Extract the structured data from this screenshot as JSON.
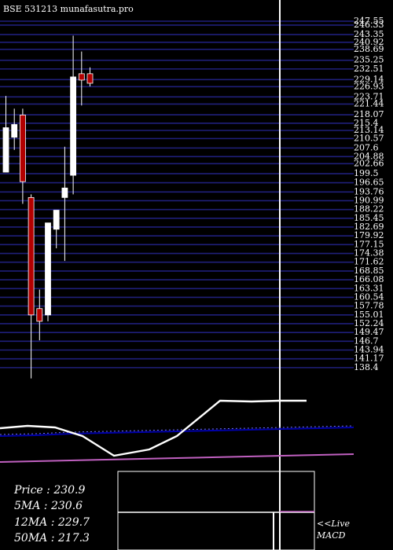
{
  "header": {
    "title": "BSE 531213 munafasutra.pro"
  },
  "colors": {
    "background": "#000000",
    "gridline": "#1f1f7a",
    "up_candle": "#ffffff",
    "down_candle": "#b30000",
    "text": "#ffffff",
    "ma_line_dark": "#0000aa",
    "ma_line_light": "#c060c0",
    "macd_line": "#ffffff",
    "signal_line": "#c060c0"
  },
  "chart_data": [
    {
      "type": "candlestick",
      "title": "BSE 531213 munafasutra.pro",
      "ylim": [
        135.4,
        247.55
      ],
      "grid": true,
      "price_ticks": [
        247.55,
        246.33,
        243.35,
        240.92,
        238.69,
        235.25,
        232.51,
        229.14,
        226.93,
        223.71,
        221.44,
        218.07,
        215.4,
        213.14,
        210.57,
        207.6,
        204.88,
        202.66,
        199.5,
        196.65,
        193.76,
        190.99,
        188.22,
        185.45,
        182.69,
        179.92,
        177.15,
        174.38,
        171.62,
        168.85,
        166.08,
        163.31,
        160.54,
        157.78,
        155.01,
        152.24,
        149.47,
        146.7,
        143.94,
        141.17,
        138.4
      ],
      "candles": [
        {
          "open": 200,
          "high": 224,
          "low": 200,
          "close": 214,
          "color": "up"
        },
        {
          "open": 211,
          "high": 220,
          "low": 207,
          "close": 215,
          "color": "up"
        },
        {
          "open": 218,
          "high": 220,
          "low": 190,
          "close": 197,
          "color": "down"
        },
        {
          "open": 192,
          "high": 193,
          "low": 135,
          "close": 155,
          "color": "down"
        },
        {
          "open": 157,
          "high": 163,
          "low": 147,
          "close": 153,
          "color": "down"
        },
        {
          "open": 155,
          "high": 184,
          "low": 153,
          "close": 184,
          "color": "up"
        },
        {
          "open": 182,
          "high": 188,
          "low": 176,
          "close": 188,
          "color": "up"
        },
        {
          "open": 192,
          "high": 208,
          "low": 172,
          "close": 195,
          "color": "up"
        },
        {
          "open": 199,
          "high": 243,
          "low": 193,
          "close": 230,
          "color": "up"
        },
        {
          "open": 231,
          "high": 238,
          "low": 221,
          "close": 229,
          "color": "down"
        },
        {
          "open": 231,
          "high": 233,
          "low": 227,
          "close": 228,
          "color": "down"
        }
      ]
    },
    {
      "type": "line",
      "series": [
        {
          "values": [
            45,
            46,
            48,
            49,
            50,
            51,
            52,
            53,
            54,
            55,
            56
          ],
          "color": "dark-blue"
        },
        {
          "values": [
            24,
            25,
            26,
            27,
            28,
            29,
            30,
            31,
            32,
            33,
            34
          ],
          "color": "magenta"
        },
        {
          "values": [
            55,
            58,
            56,
            45,
            20,
            28,
            45,
            90,
            89,
            90
          ],
          "color": "white"
        }
      ]
    }
  ],
  "stats": {
    "price": "Price   : 230.9",
    "ma5": "5MA : 230.6",
    "ma12": "12MA : 229.7",
    "ma50": "50MA : 217.3"
  },
  "macd": {
    "label_live": "<<Live",
    "label_macd": "MACD"
  }
}
